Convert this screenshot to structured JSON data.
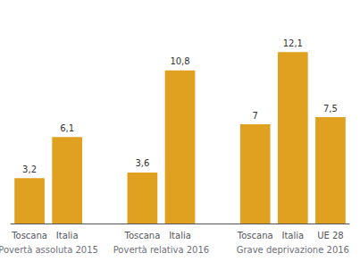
{
  "chart_data": {
    "type": "bar",
    "groups": [
      {
        "label": "Povertà assoluta 2015",
        "categories": [
          "Toscana",
          "Italia"
        ],
        "values": [
          3.2,
          6.1
        ],
        "value_labels": [
          "3,2",
          "6,1"
        ]
      },
      {
        "label": "Povertà relativa 2016",
        "categories": [
          "Toscana",
          "Italia"
        ],
        "values": [
          3.6,
          10.8
        ],
        "value_labels": [
          "3,6",
          "10,8"
        ]
      },
      {
        "label": "Grave deprivazione 2016",
        "categories": [
          "Toscana",
          "Italia",
          "UE 28"
        ],
        "values": [
          7.0,
          12.1,
          7.5
        ],
        "value_labels": [
          "7",
          "12,1",
          "7,5"
        ]
      }
    ],
    "color": "#E0A020",
    "ylim": [
      0,
      14.0
    ],
    "data_labels": true,
    "tick_labels": "x",
    "grid": false
  }
}
